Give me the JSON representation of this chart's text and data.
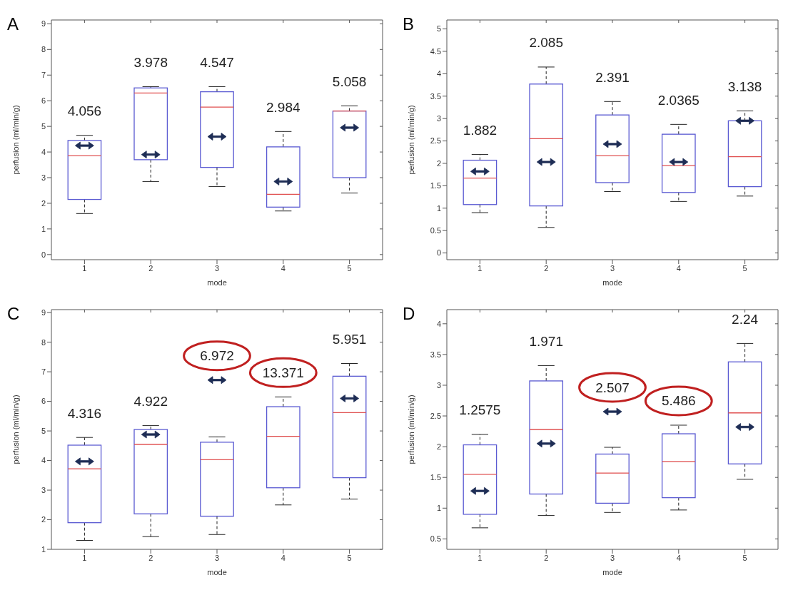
{
  "chart_data": [
    {
      "type": "box",
      "title": "A",
      "xlabel": "mode",
      "ylabel": "perfusion (ml/min/g)",
      "categories": [
        "1",
        "2",
        "3",
        "4",
        "5"
      ],
      "color": "#5a5ad2",
      "ylim": [
        -0.2,
        9.15
      ],
      "yticks": [
        0,
        1,
        2,
        3,
        4,
        5,
        6,
        7,
        8,
        9
      ],
      "grid": false,
      "boxes": [
        {
          "low": 1.6,
          "q1": 2.15,
          "median": 3.85,
          "q3": 4.45,
          "high": 4.65
        },
        {
          "low": 2.85,
          "q1": 3.7,
          "median": 6.3,
          "q3": 6.5,
          "high": 6.55
        },
        {
          "low": 2.65,
          "q1": 3.4,
          "median": 5.75,
          "q3": 6.35,
          "high": 6.55
        },
        {
          "low": 1.7,
          "q1": 1.85,
          "median": 2.35,
          "q3": 4.2,
          "high": 4.8
        },
        {
          "low": 2.4,
          "q1": 3.0,
          "median": 5.6,
          "q3": 5.6,
          "high": 5.8
        }
      ],
      "series": [
        {
          "type": "scatter",
          "color": "#1e2d55",
          "x": [
            "1",
            "2",
            "3",
            "4",
            "5"
          ],
          "values": [
            4.25,
            3.9,
            4.6,
            2.85,
            4.95
          ]
        }
      ],
      "annotations": [
        "4.056",
        "3.978",
        "4.547",
        "2.984",
        "5.058"
      ]
    },
    {
      "type": "box",
      "title": "B",
      "xlabel": "mode",
      "ylabel": "perfusion (ml/min/g)",
      "categories": [
        "1",
        "2",
        "3",
        "4",
        "5"
      ],
      "color": "#5a5ad2",
      "ylim": [
        -0.15,
        5.2
      ],
      "yticks": [
        0,
        0.5,
        1,
        1.5,
        2,
        2.5,
        3,
        3.5,
        4,
        4.5,
        5
      ],
      "grid": false,
      "boxes": [
        {
          "low": 0.9,
          "q1": 1.08,
          "median": 1.67,
          "q3": 2.07,
          "high": 2.2
        },
        {
          "low": 0.57,
          "q1": 1.05,
          "median": 2.55,
          "q3": 3.77,
          "high": 4.15
        },
        {
          "low": 1.37,
          "q1": 1.57,
          "median": 2.17,
          "q3": 3.08,
          "high": 3.38
        },
        {
          "low": 1.15,
          "q1": 1.35,
          "median": 1.95,
          "q3": 2.65,
          "high": 2.87
        },
        {
          "low": 1.27,
          "q1": 1.48,
          "median": 2.15,
          "q3": 2.95,
          "high": 3.17
        }
      ],
      "series": [
        {
          "type": "scatter",
          "color": "#1e2d55",
          "x": [
            "1",
            "2",
            "3",
            "4",
            "5"
          ],
          "values": [
            1.82,
            2.03,
            2.43,
            2.03,
            2.95
          ]
        }
      ],
      "annotations": [
        "1.882",
        "2.085",
        "2.391",
        "2.0365",
        "3.138"
      ]
    },
    {
      "type": "box",
      "title": "C",
      "xlabel": "mode",
      "ylabel": "perfusion (ml/min/g)",
      "categories": [
        "1",
        "2",
        "3",
        "4",
        "5"
      ],
      "color": "#5a5ad2",
      "ylim": [
        1,
        9.1
      ],
      "yticks": [
        1,
        2,
        3,
        4,
        5,
        6,
        7,
        8,
        9
      ],
      "grid": false,
      "boxes": [
        {
          "low": 1.3,
          "q1": 1.9,
          "median": 3.72,
          "q3": 4.52,
          "high": 4.78
        },
        {
          "low": 1.43,
          "q1": 2.2,
          "median": 4.55,
          "q3": 5.05,
          "high": 5.18
        },
        {
          "low": 1.5,
          "q1": 2.12,
          "median": 4.03,
          "q3": 4.62,
          "high": 4.8
        },
        {
          "low": 2.5,
          "q1": 3.08,
          "median": 4.82,
          "q3": 5.82,
          "high": 6.15
        },
        {
          "low": 2.7,
          "q1": 3.42,
          "median": 5.62,
          "q3": 6.85,
          "high": 7.28
        }
      ],
      "series": [
        {
          "type": "scatter",
          "color": "#1e2d55",
          "x": [
            "1",
            "2",
            "3",
            "4",
            "5"
          ],
          "values": [
            3.97,
            4.88,
            6.72,
            null,
            6.1
          ]
        }
      ],
      "annotations": [
        "4.316",
        "4.922",
        "6.972",
        "13.371",
        "5.951"
      ]
    },
    {
      "type": "box",
      "title": "D",
      "xlabel": "mode",
      "ylabel": "perfusion (ml/min/g)",
      "categories": [
        "1",
        "2",
        "3",
        "4",
        "5"
      ],
      "color": "#5a5ad2",
      "ylim": [
        0.33,
        4.23
      ],
      "yticks": [
        0.5,
        1,
        1.5,
        2,
        2.5,
        3,
        3.5,
        4
      ],
      "grid": false,
      "boxes": [
        {
          "low": 0.68,
          "q1": 0.9,
          "median": 1.55,
          "q3": 2.03,
          "high": 2.2
        },
        {
          "low": 0.88,
          "q1": 1.23,
          "median": 2.28,
          "q3": 3.07,
          "high": 3.32
        },
        {
          "low": 0.93,
          "q1": 1.08,
          "median": 1.57,
          "q3": 1.88,
          "high": 1.99
        },
        {
          "low": 0.97,
          "q1": 1.17,
          "median": 1.76,
          "q3": 2.21,
          "high": 2.35
        },
        {
          "low": 1.47,
          "q1": 1.72,
          "median": 2.55,
          "q3": 3.38,
          "high": 3.68
        }
      ],
      "series": [
        {
          "type": "scatter",
          "color": "#1e2d55",
          "x": [
            "1",
            "2",
            "3",
            "4",
            "5"
          ],
          "values": [
            1.28,
            2.05,
            2.57,
            null,
            2.32
          ]
        }
      ],
      "annotations": [
        "1.2575",
        "1.971",
        "2.507",
        "5.486",
        "2.24"
      ]
    }
  ]
}
